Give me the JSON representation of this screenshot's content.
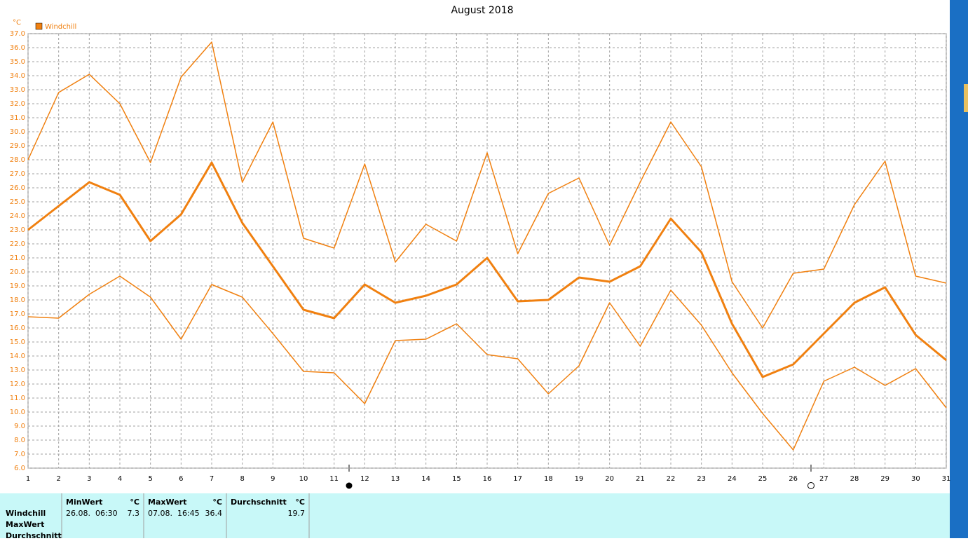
{
  "chart_data": {
    "type": "line",
    "title": "August 2018",
    "y_unit": "°C",
    "x": [
      1,
      2,
      3,
      4,
      5,
      6,
      7,
      8,
      9,
      10,
      11,
      12,
      13,
      14,
      15,
      16,
      17,
      18,
      19,
      20,
      21,
      22,
      23,
      24,
      25,
      26,
      27,
      28,
      29,
      30,
      31
    ],
    "xlim": [
      1,
      31
    ],
    "xticks": [
      1,
      2,
      3,
      4,
      5,
      6,
      7,
      8,
      9,
      10,
      11,
      12,
      13,
      14,
      15,
      16,
      17,
      18,
      19,
      20,
      21,
      22,
      23,
      24,
      25,
      26,
      27,
      28,
      29,
      30,
      31
    ],
    "ylim": [
      6,
      37
    ],
    "yticks": [
      {
        "value": 6,
        "label": "6.0"
      },
      {
        "value": 7,
        "label": "7.0"
      },
      {
        "value": 8,
        "label": "8.0"
      },
      {
        "value": 9,
        "label": "9.0"
      },
      {
        "value": 10,
        "label": "10.0"
      },
      {
        "value": 11,
        "label": "11.0"
      },
      {
        "value": 12,
        "label": "12.0"
      },
      {
        "value": 13,
        "label": "13.0"
      },
      {
        "value": 14,
        "label": "14.0"
      },
      {
        "value": 15,
        "label": "15.0"
      },
      {
        "value": 16,
        "label": "16.0"
      },
      {
        "value": 17,
        "label": "17.0"
      },
      {
        "value": 18,
        "label": "18.0"
      },
      {
        "value": 19,
        "label": "19.0"
      },
      {
        "value": 20,
        "label": "20.0"
      },
      {
        "value": 21,
        "label": "21.0"
      },
      {
        "value": 22,
        "label": "22.0"
      },
      {
        "value": 23,
        "label": "23.0"
      },
      {
        "value": 24,
        "label": "24.0"
      },
      {
        "value": 25,
        "label": "25.0"
      },
      {
        "value": 26,
        "label": "26.0"
      },
      {
        "value": 27,
        "label": "27.0"
      },
      {
        "value": 28,
        "label": "28.0"
      },
      {
        "value": 29,
        "label": "29.0"
      },
      {
        "value": 30,
        "label": "30.0"
      },
      {
        "value": 31,
        "label": "31.0"
      },
      {
        "value": 32,
        "label": "32.0"
      },
      {
        "value": 33,
        "label": "33.0"
      },
      {
        "value": 34,
        "label": "34.0"
      },
      {
        "value": 35,
        "label": "35.0"
      },
      {
        "value": 36,
        "label": "36.0"
      },
      {
        "value": 37,
        "label": "37.0"
      }
    ],
    "grid": true,
    "series": [
      {
        "color": "#f08010",
        "width": 1.5,
        "values": [
          28.0,
          32.8,
          34.1,
          32.0,
          27.8,
          33.9,
          36.4,
          26.4,
          30.7,
          22.4,
          21.7,
          27.7,
          20.7,
          23.4,
          22.2,
          28.5,
          21.3,
          25.6,
          26.7,
          21.9,
          26.4,
          30.7,
          27.5,
          19.3,
          16.0,
          19.9,
          20.2,
          24.8,
          27.9,
          19.7,
          19.2
        ]
      },
      {
        "name": "Windchill",
        "color": "#f08010",
        "width": 3,
        "values": [
          23.0,
          24.7,
          26.4,
          25.5,
          22.2,
          24.1,
          27.8,
          23.5,
          20.4,
          17.3,
          16.7,
          19.1,
          17.8,
          18.3,
          19.1,
          21.0,
          17.9,
          18.0,
          19.6,
          19.3,
          20.4,
          23.8,
          21.4,
          16.3,
          12.5,
          13.4,
          15.6,
          17.8,
          18.9,
          15.5,
          13.7
        ]
      },
      {
        "color": "#f08010",
        "width": 1.5,
        "values": [
          16.8,
          16.7,
          18.4,
          19.7,
          18.2,
          15.2,
          19.1,
          18.2,
          15.6,
          12.9,
          12.8,
          10.6,
          15.1,
          15.2,
          16.3,
          14.1,
          13.8,
          11.3,
          13.3,
          17.8,
          14.7,
          18.7,
          16.2,
          12.8,
          9.9,
          7.3,
          12.2,
          13.2,
          11.9,
          13.1,
          10.3
        ]
      }
    ]
  },
  "stats_table": {
    "row_labels": [
      "Windchill",
      "MaxWert",
      "Durchschnitt"
    ],
    "columns": [
      {
        "header": "MinWert",
        "unit": "°C",
        "time": "26.08.  06:30",
        "value": 7.3
      },
      {
        "header": "MaxWert",
        "unit": "°C",
        "time": "07.08.  16:45",
        "value": 36.4
      },
      {
        "header": "Durchschnitt",
        "unit": "°C",
        "value": 19.7
      }
    ]
  }
}
